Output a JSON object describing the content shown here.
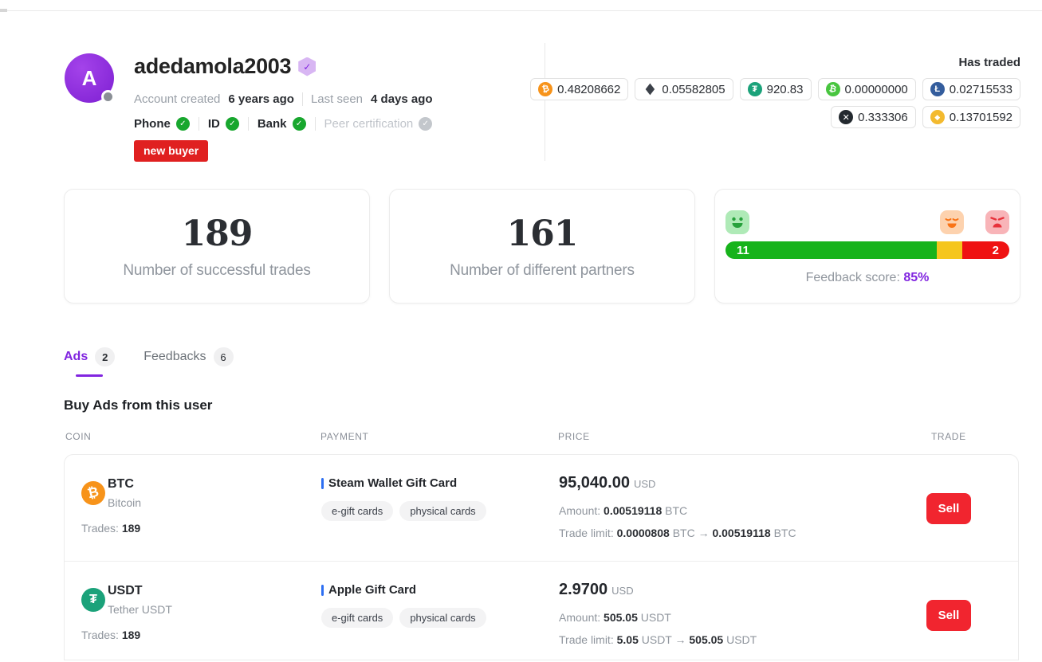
{
  "colors": {
    "accent_purple": "#8125e0",
    "badge_red": "#e02020",
    "sell_red": "#f1252f",
    "bar_green": "#17b31b",
    "bar_yellow": "#f5c61d",
    "bar_red": "#ef1212",
    "verified_green": "#18a72e",
    "link_blue": "#2d6ff2",
    "btc": "#f7931a",
    "eth": "#3c4149",
    "usdt": "#1ba27a",
    "bch": "#48c53f",
    "ltc": "#345d9d",
    "xrp": "#23292f",
    "bnb": "#f3ba2f"
  },
  "profile": {
    "avatar_letter": "A",
    "username": "adedamola2003",
    "account_created_label": "Account created",
    "account_created_value": "6 years ago",
    "last_seen_label": "Last seen",
    "last_seen_value": "4 days ago",
    "verifications": [
      {
        "label": "Phone",
        "check": "✓"
      },
      {
        "label": "ID",
        "check": "✓"
      },
      {
        "label": "Bank",
        "check": "✓"
      },
      {
        "label": "Peer certification",
        "check": "✓"
      }
    ],
    "badge": "new buyer"
  },
  "has_traded": {
    "title": "Has traded",
    "coins": [
      {
        "symbol": "BTC",
        "glyph": "₿",
        "amount": "0.48208662"
      },
      {
        "symbol": "ETH",
        "glyph": "◆",
        "amount": "0.05582805"
      },
      {
        "symbol": "USDT",
        "glyph": "₮",
        "amount": "920.83"
      },
      {
        "symbol": "BCH",
        "glyph": "₿",
        "amount": "0.00000000"
      },
      {
        "symbol": "LTC",
        "glyph": "Ł",
        "amount": "0.02715533"
      },
      {
        "symbol": "XRP",
        "glyph": "✕",
        "amount": "0.333306"
      },
      {
        "symbol": "BNB",
        "glyph": "◆",
        "amount": "0.13701592"
      }
    ]
  },
  "stats": {
    "trades": {
      "value": "189",
      "label": "Number of successful trades"
    },
    "partners": {
      "value": "161",
      "label": "Number of different partners"
    },
    "feedback": {
      "positive_count": "11",
      "negative_count": "2",
      "green_pct": 74.5,
      "yellow_pct": 8.8,
      "red_pct": 16.7,
      "score_label": "Feedback score:",
      "score_value": "85%"
    }
  },
  "tabs": [
    {
      "label": "Ads",
      "count": "2"
    },
    {
      "label": "Feedbacks",
      "count": "6"
    }
  ],
  "ads_section": {
    "heading": "Buy Ads from this user",
    "columns": {
      "coin": "COIN",
      "payment": "PAYMENT",
      "price": "PRICE",
      "trade": "TRADE"
    },
    "rows": [
      {
        "coin": {
          "symbol": "BTC",
          "name": "Bitcoin",
          "glyph": "₿",
          "trades_label": "Trades:",
          "trades": "189"
        },
        "payment": {
          "method": "Steam Wallet Gift Card",
          "tags": [
            "e-gift cards",
            "physical cards"
          ]
        },
        "price": {
          "value": "95,040.00",
          "currency": "USD",
          "amount_label": "Amount:",
          "amount": "0.00519118",
          "amount_unit": "BTC",
          "limit_label": "Trade limit:",
          "limit_min": "0.0000808",
          "limit_min_unit": "BTC",
          "arrow": "→",
          "limit_max": "0.00519118",
          "limit_max_unit": "BTC"
        },
        "action": "Sell"
      },
      {
        "coin": {
          "symbol": "USDT",
          "name": "Tether USDT",
          "glyph": "₮",
          "trades_label": "Trades:",
          "trades": "189"
        },
        "payment": {
          "method": "Apple Gift Card",
          "tags": [
            "e-gift cards",
            "physical cards"
          ]
        },
        "price": {
          "value": "2.9700",
          "currency": "USD",
          "amount_label": "Amount:",
          "amount": "505.05",
          "amount_unit": "USDT",
          "limit_label": "Trade limit:",
          "limit_min": "5.05",
          "limit_min_unit": "USDT",
          "arrow": "→",
          "limit_max": "505.05",
          "limit_max_unit": "USDT"
        },
        "action": "Sell"
      }
    ]
  }
}
